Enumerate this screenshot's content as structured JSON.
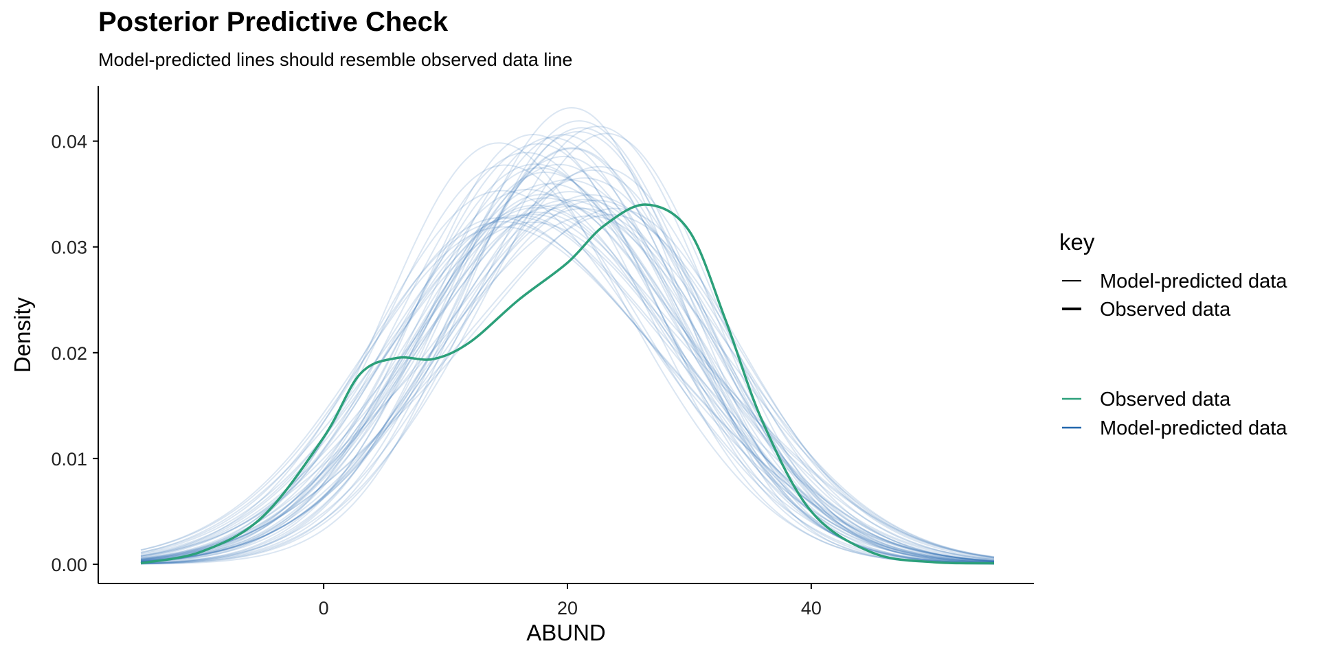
{
  "chart_data": {
    "type": "line",
    "title": "Posterior Predictive Check",
    "subtitle": "Model-predicted lines should resemble observed data line",
    "xlabel": "ABUND",
    "ylabel": "Density",
    "xlim": [
      -15,
      55
    ],
    "ylim": [
      0,
      0.044
    ],
    "x_ticks": [
      0,
      20,
      40
    ],
    "y_ticks": [
      0.0,
      0.01,
      0.02,
      0.03,
      0.04
    ],
    "y_tick_labels": [
      "0.00",
      "0.01",
      "0.02",
      "0.03",
      "0.04"
    ],
    "grid": false,
    "legend_position": "right",
    "legend": {
      "title": "key",
      "linetype_entries": [
        "Model-predicted data",
        "Observed data"
      ],
      "color_entries": [
        {
          "name": "Observed data",
          "color": "#2ca07a"
        },
        {
          "name": "Model-predicted data",
          "color": "#2166ac"
        }
      ]
    },
    "observed_series": {
      "name": "Observed data",
      "color": "#2ca07a",
      "x": [
        -15,
        -10,
        -5,
        0,
        3,
        6,
        9,
        12,
        16,
        20,
        23,
        26.5,
        30,
        33,
        36,
        40,
        45,
        50,
        55
      ],
      "y": [
        0.0001,
        0.0012,
        0.0045,
        0.012,
        0.018,
        0.0195,
        0.0194,
        0.021,
        0.025,
        0.0285,
        0.032,
        0.034,
        0.0315,
        0.023,
        0.0135,
        0.005,
        0.0011,
        0.0002,
        0.0001
      ]
    },
    "predicted_series": {
      "name": "Model-predicted data",
      "color": "#2166ac",
      "count": 50,
      "mean_center": 19,
      "mean_sd": 11
    }
  }
}
